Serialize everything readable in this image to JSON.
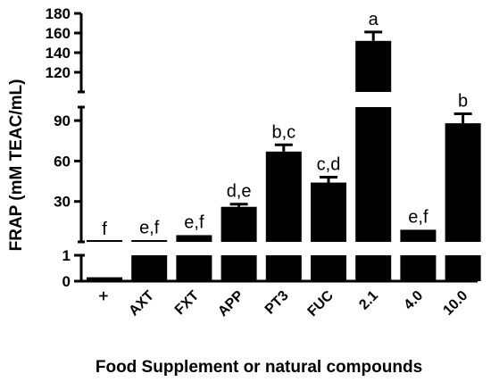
{
  "chart_data": {
    "type": "bar",
    "xlabel": "Food Supplement or natural compounds",
    "ylabel": "FRAP (mM TEAC/mL)",
    "categories": [
      "×",
      "AXT",
      "FXT",
      "APP",
      "PT3",
      "FUC",
      "2.1",
      "4.0",
      "10.0"
    ],
    "values": [
      0.15,
      1,
      5,
      26,
      67,
      44,
      152,
      9,
      88
    ],
    "errors": [
      0,
      0,
      0,
      2,
      5,
      4,
      9,
      0,
      7
    ],
    "significance": [
      "f",
      "e,f",
      "e,f",
      "d,e",
      "b,c",
      "c,d",
      "a",
      "e,f",
      "b"
    ],
    "y_axis_segments": [
      {
        "range": [
          0,
          1
        ],
        "ticks": [
          0,
          1
        ]
      },
      {
        "range": [
          0,
          100
        ],
        "ticks": [
          30,
          60,
          90
        ]
      },
      {
        "range": [
          100,
          180
        ],
        "ticks": [
          120,
          140,
          160,
          180
        ]
      }
    ],
    "colors": {
      "bar": "#000000",
      "axis": "#000000"
    }
  }
}
